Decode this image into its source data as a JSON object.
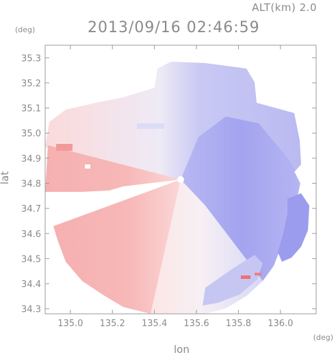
{
  "header": {
    "altitude_label": "ALT(km) 2.0",
    "timestamp": "2013/09/16 02:46:59"
  },
  "chart_data": {
    "type": "heatmap",
    "title": "2013/09/16 02:46:59",
    "subtitle": "ALT(km) 2.0",
    "xlabel": "lon",
    "ylabel": "lat",
    "x_unit": "(deg)",
    "y_unit": "(deg)",
    "xlim": [
      134.88,
      136.17
    ],
    "ylim": [
      34.28,
      35.35
    ],
    "x_ticks": [
      135.0,
      135.2,
      135.4,
      135.6,
      135.8,
      136.0
    ],
    "x_tick_labels": [
      "135.0",
      "135.2",
      "135.4",
      "135.6",
      "135.8",
      "136.0"
    ],
    "y_ticks": [
      34.3,
      34.4,
      34.5,
      34.6,
      34.7,
      34.8,
      34.9,
      35.0,
      35.1,
      35.2,
      35.3
    ],
    "y_tick_labels": [
      "34.3",
      "34.4",
      "34.5",
      "34.6",
      "34.7",
      "34.8",
      "34.9",
      "35.0",
      "35.1",
      "35.2",
      "35.3"
    ],
    "radar_center": {
      "lon": 135.52,
      "lat": 34.82
    },
    "colors": {
      "toward": "#8f8ff2",
      "away": "#f08c8c",
      "axis": "#9a9a9a"
    }
  }
}
